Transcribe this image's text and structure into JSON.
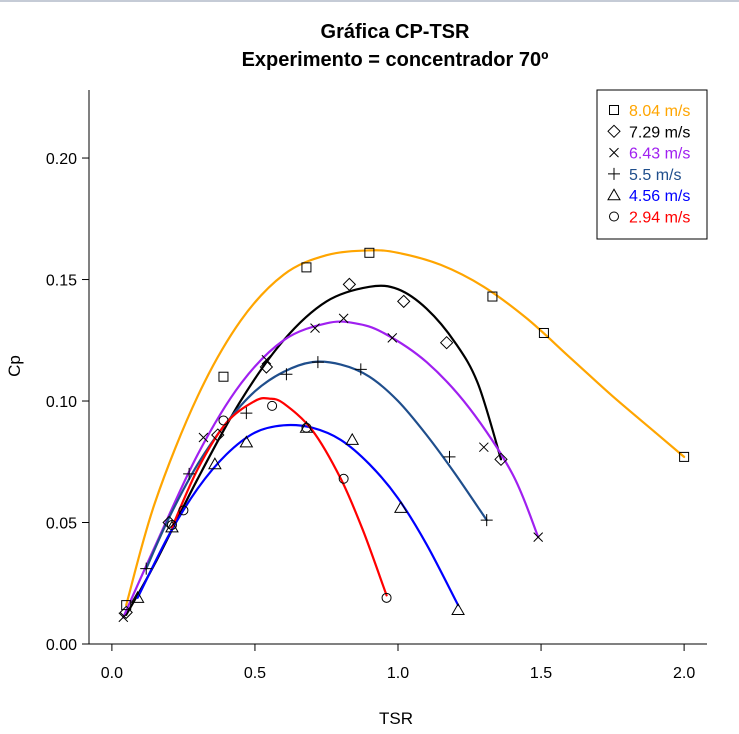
{
  "chart_data": {
    "type": "scatter",
    "title": "Gráfica CP-TSR",
    "subtitle": "Experimento = concentrador 70º",
    "xlabel": "TSR",
    "ylabel": "Cp",
    "xlim": [
      -0.08,
      2.08
    ],
    "ylim": [
      0.0,
      0.228
    ],
    "x_ticks": [
      0.0,
      0.5,
      1.0,
      1.5,
      2.0
    ],
    "x_tick_labels": [
      "0.0",
      "0.5",
      "1.0",
      "1.5",
      "2.0"
    ],
    "y_ticks": [
      0.0,
      0.05,
      0.1,
      0.15,
      0.2
    ],
    "y_tick_labels": [
      "0.00",
      "0.05",
      "0.10",
      "0.15",
      "0.20"
    ],
    "grid": false,
    "legend_position": "top-right",
    "series": [
      {
        "name": "8.04 m/s",
        "color": "#FFA500",
        "marker": "square",
        "points": [
          [
            0.05,
            0.016
          ],
          [
            0.39,
            0.11
          ],
          [
            0.68,
            0.155
          ],
          [
            0.9,
            0.161
          ],
          [
            1.33,
            0.143
          ],
          [
            1.51,
            0.128
          ],
          [
            2.0,
            0.077
          ]
        ],
        "curve": [
          [
            0.05,
            0.016
          ],
          [
            0.15,
            0.058
          ],
          [
            0.3,
            0.102
          ],
          [
            0.45,
            0.133
          ],
          [
            0.6,
            0.152
          ],
          [
            0.75,
            0.16
          ],
          [
            0.9,
            0.162
          ],
          [
            1.0,
            0.161
          ],
          [
            1.15,
            0.156
          ],
          [
            1.3,
            0.147
          ],
          [
            1.45,
            0.134
          ],
          [
            1.6,
            0.118
          ],
          [
            1.75,
            0.102
          ],
          [
            1.9,
            0.087
          ],
          [
            2.0,
            0.077
          ]
        ]
      },
      {
        "name": "7.29 m/s",
        "color": "#000000",
        "marker": "diamond",
        "points": [
          [
            0.05,
            0.013
          ],
          [
            0.2,
            0.05
          ],
          [
            0.37,
            0.086
          ],
          [
            0.54,
            0.114
          ],
          [
            0.83,
            0.148
          ],
          [
            1.02,
            0.141
          ],
          [
            1.17,
            0.124
          ],
          [
            1.36,
            0.076
          ]
        ],
        "curve": [
          [
            0.05,
            0.012
          ],
          [
            0.15,
            0.033
          ],
          [
            0.3,
            0.068
          ],
          [
            0.45,
            0.1
          ],
          [
            0.6,
            0.125
          ],
          [
            0.75,
            0.141
          ],
          [
            0.9,
            0.147
          ],
          [
            1.0,
            0.146
          ],
          [
            1.1,
            0.138
          ],
          [
            1.2,
            0.124
          ],
          [
            1.28,
            0.107
          ],
          [
            1.36,
            0.076
          ]
        ]
      },
      {
        "name": "6.43 m/s",
        "color": "#A020F0",
        "marker": "cross",
        "points": [
          [
            0.04,
            0.011
          ],
          [
            0.32,
            0.085
          ],
          [
            0.54,
            0.117
          ],
          [
            0.71,
            0.13
          ],
          [
            0.81,
            0.134
          ],
          [
            0.98,
            0.126
          ],
          [
            1.3,
            0.081
          ],
          [
            1.49,
            0.044
          ]
        ],
        "curve": [
          [
            0.04,
            0.011
          ],
          [
            0.15,
            0.04
          ],
          [
            0.3,
            0.078
          ],
          [
            0.45,
            0.107
          ],
          [
            0.6,
            0.125
          ],
          [
            0.75,
            0.132
          ],
          [
            0.85,
            0.132
          ],
          [
            0.95,
            0.128
          ],
          [
            1.1,
            0.116
          ],
          [
            1.25,
            0.097
          ],
          [
            1.4,
            0.07
          ],
          [
            1.49,
            0.044
          ]
        ]
      },
      {
        "name": "5.5 m/s",
        "color": "#1F4E8C",
        "marker": "plus",
        "points": [
          [
            0.12,
            0.031
          ],
          [
            0.27,
            0.07
          ],
          [
            0.47,
            0.095
          ],
          [
            0.61,
            0.111
          ],
          [
            0.72,
            0.116
          ],
          [
            0.87,
            0.113
          ],
          [
            1.18,
            0.077
          ],
          [
            1.31,
            0.051
          ]
        ],
        "curve": [
          [
            0.12,
            0.031
          ],
          [
            0.2,
            0.052
          ],
          [
            0.3,
            0.074
          ],
          [
            0.4,
            0.091
          ],
          [
            0.5,
            0.104
          ],
          [
            0.6,
            0.112
          ],
          [
            0.7,
            0.116
          ],
          [
            0.8,
            0.115
          ],
          [
            0.9,
            0.11
          ],
          [
            1.0,
            0.1
          ],
          [
            1.1,
            0.086
          ],
          [
            1.2,
            0.07
          ],
          [
            1.31,
            0.051
          ]
        ]
      },
      {
        "name": "4.56 m/s",
        "color": "#0000FF",
        "marker": "triangle",
        "points": [
          [
            0.09,
            0.019
          ],
          [
            0.21,
            0.048
          ],
          [
            0.36,
            0.074
          ],
          [
            0.47,
            0.083
          ],
          [
            0.68,
            0.089
          ],
          [
            0.84,
            0.084
          ],
          [
            1.01,
            0.056
          ],
          [
            1.21,
            0.014
          ]
        ],
        "curve": [
          [
            0.09,
            0.019
          ],
          [
            0.2,
            0.045
          ],
          [
            0.3,
            0.064
          ],
          [
            0.4,
            0.078
          ],
          [
            0.5,
            0.087
          ],
          [
            0.6,
            0.09
          ],
          [
            0.7,
            0.089
          ],
          [
            0.8,
            0.084
          ],
          [
            0.9,
            0.074
          ],
          [
            1.0,
            0.06
          ],
          [
            1.1,
            0.041
          ],
          [
            1.21,
            0.016
          ]
        ]
      },
      {
        "name": "2.94 m/s",
        "color": "#FF0000",
        "marker": "circle",
        "points": [
          [
            0.21,
            0.049
          ],
          [
            0.25,
            0.055
          ],
          [
            0.39,
            0.092
          ],
          [
            0.56,
            0.098
          ],
          [
            0.68,
            0.089
          ],
          [
            0.81,
            0.068
          ],
          [
            0.96,
            0.019
          ]
        ],
        "curve": [
          [
            0.21,
            0.048
          ],
          [
            0.3,
            0.072
          ],
          [
            0.4,
            0.091
          ],
          [
            0.5,
            0.1
          ],
          [
            0.55,
            0.101
          ],
          [
            0.6,
            0.099
          ],
          [
            0.7,
            0.088
          ],
          [
            0.8,
            0.068
          ],
          [
            0.88,
            0.046
          ],
          [
            0.96,
            0.02
          ]
        ]
      }
    ]
  }
}
